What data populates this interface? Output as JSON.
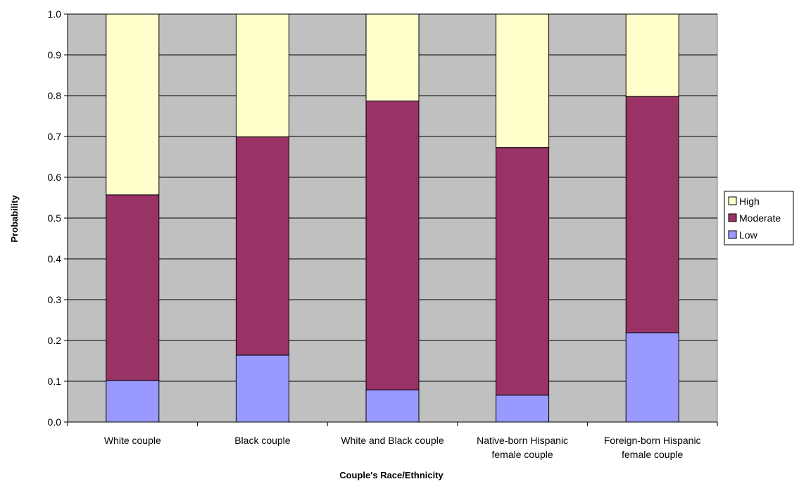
{
  "chart_data": {
    "type": "bar",
    "stacked": true,
    "xlabel": "Couple's Race/Ethnicity",
    "ylabel": "Probability",
    "ylim": [
      0,
      1.0
    ],
    "yticks": [
      "0.0",
      "0.1",
      "0.2",
      "0.3",
      "0.4",
      "0.5",
      "0.6",
      "0.7",
      "0.8",
      "0.9",
      "1.0"
    ],
    "categories": [
      [
        "White couple"
      ],
      [
        "Black couple"
      ],
      [
        "White and Black couple"
      ],
      [
        "Native-born Hispanic",
        "female couple"
      ],
      [
        "Foreign-born Hispanic",
        "female couple"
      ]
    ],
    "series": [
      {
        "name": "Low",
        "color": "#9999FF",
        "values": [
          0.102,
          0.164,
          0.079,
          0.066,
          0.219
        ]
      },
      {
        "name": "Moderate",
        "color": "#993366",
        "values": [
          0.455,
          0.535,
          0.708,
          0.607,
          0.579
        ]
      },
      {
        "name": "High",
        "color": "#FFFFCC",
        "values": [
          0.443,
          0.301,
          0.213,
          0.327,
          0.202
        ]
      }
    ],
    "legend_position": "right",
    "grid": true,
    "plot_background": "#C0C0C0"
  }
}
